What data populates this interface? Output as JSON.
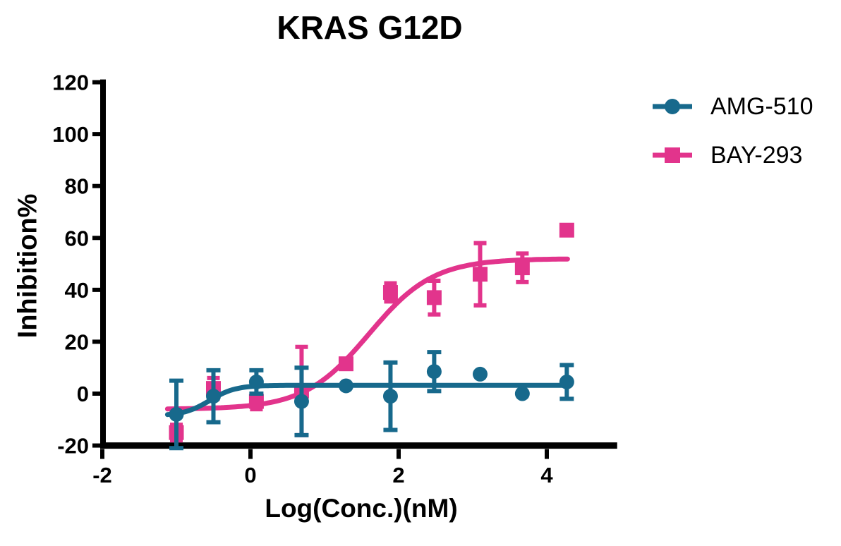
{
  "title": "KRAS G12D",
  "chart_data": {
    "type": "scatter",
    "title": "KRAS G12D",
    "xlabel": "Log(Conc.)(nM)",
    "ylabel": "Inhibition%",
    "xlim": [
      -2,
      4.95
    ],
    "ylim": [
      -20,
      120
    ],
    "xticks": [
      -2,
      0,
      2,
      4
    ],
    "yticks": [
      120,
      100,
      80,
      60,
      40,
      20,
      0,
      -20
    ],
    "grid": false,
    "legend_position": "right of plot, top",
    "x": [
      -1.0,
      -0.5,
      0.08,
      0.69,
      1.29,
      1.89,
      2.48,
      3.1,
      3.67,
      4.27
    ],
    "series": [
      {
        "name": "AMG-510",
        "marker": "circle",
        "color": "#17698C",
        "values": [
          -8,
          -1,
          4.5,
          -3,
          3,
          -1,
          8.5,
          7.5,
          0,
          4.5
        ],
        "yerr": [
          13,
          10,
          4.5,
          13,
          0,
          13,
          7.5,
          0,
          0,
          6.5
        ],
        "fit_curve": {
          "shape": "sigmoid",
          "bottom": -8.5,
          "top": 3.2,
          "logEC50": -0.55,
          "hill": 2.5,
          "x_start": -1.12,
          "x_end": 4.31
        }
      },
      {
        "name": "BAY-293",
        "marker": "square",
        "color": "#E2348C",
        "values": [
          -15,
          2,
          -3,
          1,
          11.5,
          39,
          37,
          46,
          48.5,
          63
        ],
        "yerr": [
          3,
          4,
          3,
          17,
          0,
          3.5,
          6.5,
          12,
          5.5,
          0
        ],
        "fit_curve": {
          "shape": "sigmoid",
          "bottom": -6,
          "top": 52,
          "logEC50": 1.6,
          "hill": 1.0,
          "x_start": -1.12,
          "x_end": 4.31
        }
      }
    ]
  }
}
